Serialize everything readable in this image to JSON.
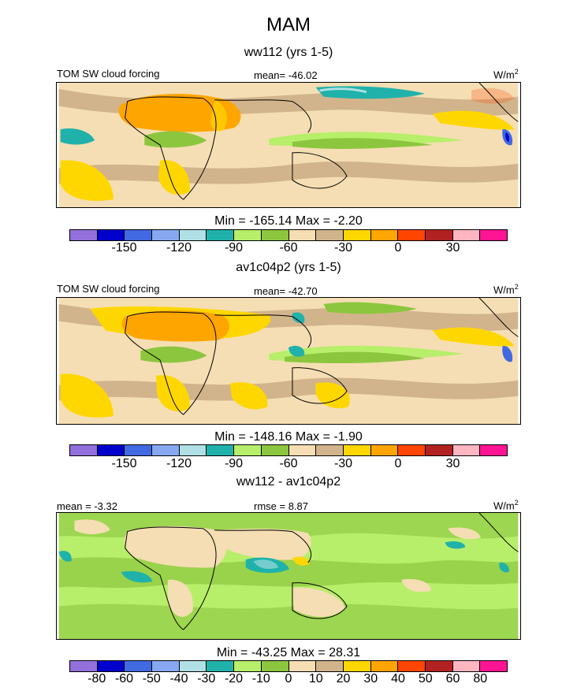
{
  "figure": {
    "season": "MAM",
    "panels": [
      {
        "title": "ww112 (yrs 1-5)",
        "label_left": "TOM SW cloud forcing",
        "label_center": "mean= -46.02",
        "units": "W/m",
        "units_exp": "2",
        "min_max": "Min = -165.14 Max =  -2.20"
      },
      {
        "title": "av1c04p2 (yrs 1-5)",
        "label_left": "TOM SW cloud forcing",
        "label_center": "mean= -42.70",
        "units": "W/m",
        "units_exp": "2",
        "min_max": "Min = -148.16 Max =  -1.90"
      },
      {
        "title": "ww112 - av1c04p2",
        "label_left": "mean =  -3.32",
        "label_center": "rmse =   8.87",
        "units": "W/m",
        "units_exp": "2",
        "min_max": "Min = -43.25 Max =  28.31"
      }
    ]
  },
  "colorbars": {
    "field": {
      "colors": [
        "#9370db",
        "#0000cd",
        "#4169e1",
        "#87a8f0",
        "#b0e0e6",
        "#20b2aa",
        "#b7ee6a",
        "#8cc63f",
        "#f5deb3",
        "#d2b48c",
        "#ffd700",
        "#ffa500",
        "#ff4500",
        "#b22222",
        "#ffb6c1",
        "#ff1493"
      ],
      "tick_labels": [
        "-150",
        "-120",
        "-90",
        "-60",
        "-30",
        "0",
        "30"
      ]
    },
    "diff": {
      "colors": [
        "#9370db",
        "#0000cd",
        "#4169e1",
        "#87a8f0",
        "#b0e0e6",
        "#20b2aa",
        "#b7ee6a",
        "#8cc63f",
        "#f5deb3",
        "#d2b48c",
        "#ffd700",
        "#ffa500",
        "#ff4500",
        "#b22222",
        "#ffb6c1",
        "#ff1493"
      ],
      "tick_labels": [
        "-80",
        "-60",
        "-50",
        "-40",
        "-30",
        "-20",
        "-10",
        "0",
        "10",
        "20",
        "30",
        "40",
        "50",
        "60",
        "80"
      ]
    }
  }
}
